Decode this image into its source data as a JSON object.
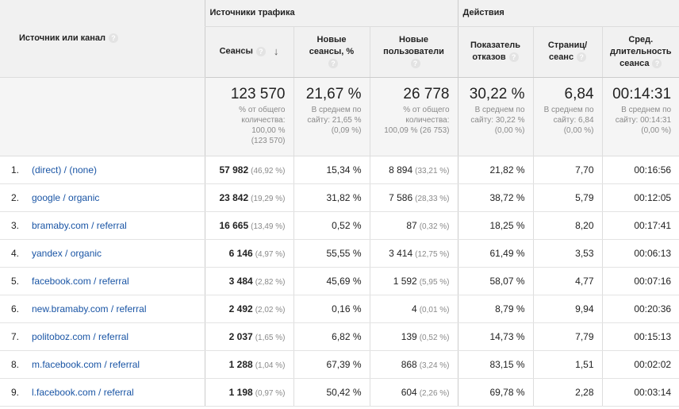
{
  "groups": {
    "traffic": "Источники трафика",
    "actions": "Действия"
  },
  "columns": {
    "dimension": "Источник или канал",
    "sessions": "Сеансы",
    "new_sessions": [
      "Новые",
      "сеансы, %"
    ],
    "new_users": [
      "Новые",
      "пользователи"
    ],
    "bounce": [
      "Показатель",
      "отказов"
    ],
    "pages": [
      "Страниц/",
      "сеанс"
    ],
    "duration": [
      "Сред.",
      "длительность",
      "сеанса"
    ]
  },
  "totals": {
    "sessions": {
      "value": "123 570",
      "lines": [
        "% от общего",
        "количества:",
        "100,00 %",
        "(123 570)"
      ]
    },
    "new_sessions": {
      "value": "21,67 %",
      "lines": [
        "В среднем по",
        "сайту: 21,65 %",
        "(0,09 %)"
      ]
    },
    "new_users": {
      "value": "26 778",
      "lines": [
        "% от общего",
        "количества:",
        "100,09 % (26 753)"
      ]
    },
    "bounce": {
      "value": "30,22 %",
      "lines": [
        "В среднем по",
        "сайту: 30,22 %",
        "(0,00 %)"
      ]
    },
    "pages": {
      "value": "6,84",
      "lines": [
        "В среднем по",
        "сайту: 6,84",
        "(0,00 %)"
      ]
    },
    "duration": {
      "value": "00:14:31",
      "lines": [
        "В среднем по",
        "сайту: 00:14:31",
        "(0,00 %)"
      ]
    }
  },
  "rows": [
    {
      "num": "1.",
      "source": "(direct) / (none)",
      "sessions": "57 982",
      "sessions_pct": "(46,92 %)",
      "new_sessions": "15,34 %",
      "new_users": "8 894",
      "new_users_pct": "(33,21 %)",
      "bounce": "21,82 %",
      "pages": "7,70",
      "duration": "00:16:56"
    },
    {
      "num": "2.",
      "source": "google / organic",
      "sessions": "23 842",
      "sessions_pct": "(19,29 %)",
      "new_sessions": "31,82 %",
      "new_users": "7 586",
      "new_users_pct": "(28,33 %)",
      "bounce": "38,72 %",
      "pages": "5,79",
      "duration": "00:12:05"
    },
    {
      "num": "3.",
      "source": "bramaby.com / referral",
      "sessions": "16 665",
      "sessions_pct": "(13,49 %)",
      "new_sessions": "0,52 %",
      "new_users": "87",
      "new_users_pct": "(0,32 %)",
      "bounce": "18,25 %",
      "pages": "8,20",
      "duration": "00:17:41"
    },
    {
      "num": "4.",
      "source": "yandex / organic",
      "sessions": "6 146",
      "sessions_pct": "(4,97 %)",
      "new_sessions": "55,55 %",
      "new_users": "3 414",
      "new_users_pct": "(12,75 %)",
      "bounce": "61,49 %",
      "pages": "3,53",
      "duration": "00:06:13"
    },
    {
      "num": "5.",
      "source": "facebook.com / referral",
      "sessions": "3 484",
      "sessions_pct": "(2,82 %)",
      "new_sessions": "45,69 %",
      "new_users": "1 592",
      "new_users_pct": "(5,95 %)",
      "bounce": "58,07 %",
      "pages": "4,77",
      "duration": "00:07:16"
    },
    {
      "num": "6.",
      "source": "new.bramaby.com / referral",
      "sessions": "2 492",
      "sessions_pct": "(2,02 %)",
      "new_sessions": "0,16 %",
      "new_users": "4",
      "new_users_pct": "(0,01 %)",
      "bounce": "8,79 %",
      "pages": "9,94",
      "duration": "00:20:36"
    },
    {
      "num": "7.",
      "source": "politoboz.com / referral",
      "sessions": "2 037",
      "sessions_pct": "(1,65 %)",
      "new_sessions": "6,82 %",
      "new_users": "139",
      "new_users_pct": "(0,52 %)",
      "bounce": "14,73 %",
      "pages": "7,79",
      "duration": "00:15:13"
    },
    {
      "num": "8.",
      "source": "m.facebook.com / referral",
      "sessions": "1 288",
      "sessions_pct": "(1,04 %)",
      "new_sessions": "67,39 %",
      "new_users": "868",
      "new_users_pct": "(3,24 %)",
      "bounce": "83,15 %",
      "pages": "1,51",
      "duration": "00:02:02"
    },
    {
      "num": "9.",
      "source": "l.facebook.com / referral",
      "sessions": "1 198",
      "sessions_pct": "(0,97 %)",
      "new_sessions": "50,42 %",
      "new_users": "604",
      "new_users_pct": "(2,26 %)",
      "bounce": "69,78 %",
      "pages": "2,28",
      "duration": "00:03:14"
    }
  ]
}
